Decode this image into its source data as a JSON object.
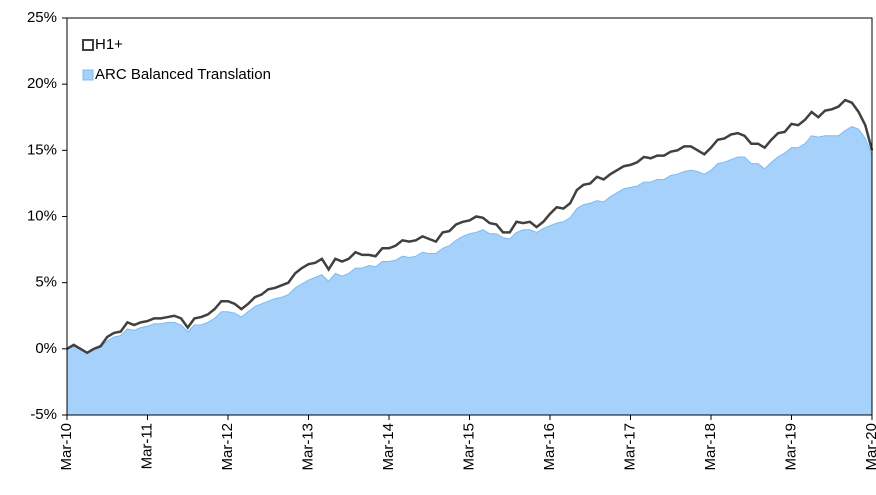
{
  "chart_data": {
    "type": "area",
    "categories": [
      "Mar-10",
      null,
      null,
      null,
      null,
      null,
      null,
      null,
      null,
      null,
      null,
      null,
      "Mar-11",
      null,
      null,
      null,
      null,
      null,
      null,
      null,
      null,
      null,
      null,
      null,
      "Mar-12",
      null,
      null,
      null,
      null,
      null,
      null,
      null,
      null,
      null,
      null,
      null,
      "Mar-13",
      null,
      null,
      null,
      null,
      null,
      null,
      null,
      null,
      null,
      null,
      null,
      "Mar-14",
      null,
      null,
      null,
      null,
      null,
      null,
      null,
      null,
      null,
      null,
      null,
      "Mar-15",
      null,
      null,
      null,
      null,
      null,
      null,
      null,
      null,
      null,
      null,
      null,
      "Mar-16",
      null,
      null,
      null,
      null,
      null,
      null,
      null,
      null,
      null,
      null,
      null,
      "Mar-17",
      null,
      null,
      null,
      null,
      null,
      null,
      null,
      null,
      null,
      null,
      null,
      "Mar-18",
      null,
      null,
      null,
      null,
      null,
      null,
      null,
      null,
      null,
      null,
      null,
      "Mar-19",
      null,
      null,
      null,
      null,
      null,
      null,
      null,
      null,
      null,
      null,
      null,
      "Mar-20"
    ],
    "series": [
      {
        "name": "H1+",
        "color": "#404040",
        "style": "line",
        "values": [
          0,
          0.3,
          0,
          -0.3,
          0,
          0.2,
          0.9,
          1.2,
          1.3,
          2.0,
          1.8,
          2.0,
          2.1,
          2.3,
          2.3,
          2.4,
          2.5,
          2.3,
          1.6,
          2.3,
          2.4,
          2.6,
          3.0,
          3.6,
          3.6,
          3.4,
          3.0,
          3.4,
          3.9,
          4.1,
          4.5,
          4.6,
          4.8,
          5.0,
          5.7,
          6.1,
          6.4,
          6.5,
          6.8,
          6.0,
          6.8,
          6.6,
          6.8,
          7.3,
          7.1,
          7.1,
          7.0,
          7.6,
          7.6,
          7.8,
          8.2,
          8.1,
          8.2,
          8.5,
          8.3,
          8.1,
          8.8,
          8.9,
          9.4,
          9.6,
          9.7,
          10.0,
          9.9,
          9.5,
          9.4,
          8.8,
          8.8,
          9.6,
          9.5,
          9.6,
          9.2,
          9.6,
          10.2,
          10.7,
          10.6,
          11.0,
          12.0,
          12.4,
          12.5,
          13.0,
          12.8,
          13.2,
          13.5,
          13.8,
          13.9,
          14.1,
          14.5,
          14.4,
          14.6,
          14.6,
          14.9,
          15.0,
          15.3,
          15.3,
          15.0,
          14.7,
          15.2,
          15.8,
          15.9,
          16.2,
          16.3,
          16.1,
          15.5,
          15.5,
          15.2,
          15.8,
          16.3,
          16.4,
          17.0,
          16.9,
          17.3,
          17.9,
          17.5,
          18.0,
          18.1,
          18.3,
          18.8,
          18.6,
          17.9,
          16.9,
          15.0
        ]
      },
      {
        "name": "ARC Balanced Translation",
        "color": "#a6d1fb",
        "style": "area",
        "values": [
          0,
          0.2,
          0,
          -0.3,
          0,
          0.1,
          0.6,
          0.9,
          1.0,
          1.5,
          1.4,
          1.6,
          1.7,
          1.9,
          1.9,
          2.0,
          2.0,
          1.8,
          1.3,
          1.8,
          1.8,
          2.0,
          2.3,
          2.8,
          2.8,
          2.7,
          2.4,
          2.8,
          3.2,
          3.4,
          3.6,
          3.8,
          3.9,
          4.1,
          4.6,
          4.9,
          5.2,
          5.4,
          5.6,
          5.1,
          5.7,
          5.5,
          5.7,
          6.1,
          6.1,
          6.3,
          6.2,
          6.6,
          6.6,
          6.7,
          7.0,
          6.9,
          7.0,
          7.3,
          7.2,
          7.2,
          7.6,
          7.8,
          8.2,
          8.5,
          8.7,
          8.8,
          9.0,
          8.7,
          8.7,
          8.4,
          8.3,
          8.8,
          9.0,
          9.0,
          8.8,
          9.1,
          9.3,
          9.5,
          9.6,
          9.9,
          10.6,
          10.9,
          11.0,
          11.2,
          11.1,
          11.5,
          11.8,
          12.1,
          12.2,
          12.3,
          12.6,
          12.6,
          12.8,
          12.8,
          13.1,
          13.2,
          13.4,
          13.5,
          13.4,
          13.2,
          13.5,
          14.0,
          14.1,
          14.3,
          14.5,
          14.5,
          14.0,
          14.0,
          13.6,
          14.1,
          14.5,
          14.8,
          15.2,
          15.2,
          15.5,
          16.1,
          16.0,
          16.1,
          16.1,
          16.1,
          16.5,
          16.8,
          16.6,
          15.9,
          14.6
        ]
      }
    ],
    "ylim": [
      -5,
      25
    ],
    "yticks": [
      {
        "value": -5,
        "label": "-5%"
      },
      {
        "value": 0,
        "label": "0%"
      },
      {
        "value": 5,
        "label": "5%"
      },
      {
        "value": 10,
        "label": "10%"
      },
      {
        "value": 15,
        "label": "15%"
      },
      {
        "value": 20,
        "label": "20%"
      },
      {
        "value": 25,
        "label": "25%"
      }
    ],
    "grid": false,
    "legend": "upper left"
  }
}
